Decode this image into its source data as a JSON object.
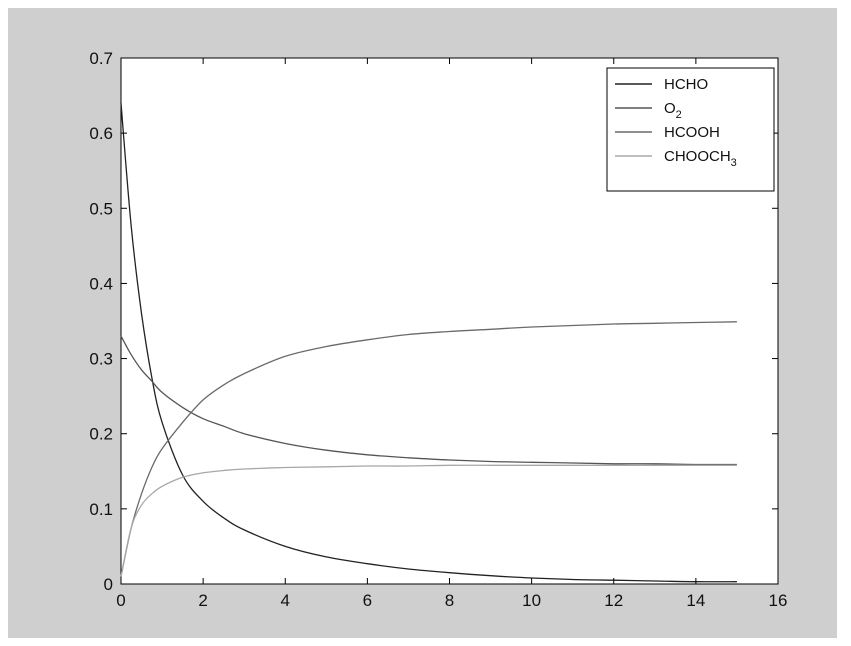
{
  "chart_data": {
    "type": "line",
    "title": "",
    "xlabel": "",
    "ylabel": "",
    "xlim": [
      0,
      16
    ],
    "ylim": [
      0,
      0.7
    ],
    "xticks": [
      0,
      2,
      4,
      6,
      8,
      10,
      12,
      14,
      16
    ],
    "yticks": [
      0,
      0.1,
      0.2,
      0.3,
      0.4,
      0.5,
      0.6,
      0.7
    ],
    "xtick_labels": [
      "0",
      "2",
      "4",
      "6",
      "8",
      "10",
      "12",
      "14",
      "16"
    ],
    "ytick_labels": [
      "0",
      "0.1",
      "0.2",
      "0.3",
      "0.4",
      "0.5",
      "0.6",
      "0.7"
    ],
    "grid": false,
    "legend_position": "top-right",
    "series": [
      {
        "name": "HCHO",
        "label_main": "HCHO",
        "label_sub": "",
        "color": "#222222",
        "x": [
          0,
          0.25,
          0.5,
          0.75,
          1,
          1.5,
          2,
          2.5,
          3,
          4,
          5,
          6,
          7,
          8,
          9,
          10,
          11,
          12,
          13,
          14,
          15
        ],
        "y": [
          0.64,
          0.475,
          0.36,
          0.275,
          0.215,
          0.145,
          0.11,
          0.088,
          0.072,
          0.05,
          0.036,
          0.027,
          0.02,
          0.015,
          0.011,
          0.008,
          0.006,
          0.005,
          0.004,
          0.003,
          0.003
        ]
      },
      {
        "name": "O2",
        "label_main": "O",
        "label_sub": "2",
        "color": "#555555",
        "x": [
          0,
          0.25,
          0.5,
          0.75,
          1,
          1.5,
          2,
          2.5,
          3,
          4,
          5,
          6,
          7,
          8,
          9,
          10,
          11,
          12,
          13,
          14,
          15
        ],
        "y": [
          0.33,
          0.305,
          0.285,
          0.27,
          0.255,
          0.235,
          0.22,
          0.21,
          0.2,
          0.187,
          0.178,
          0.172,
          0.168,
          0.165,
          0.163,
          0.162,
          0.161,
          0.16,
          0.16,
          0.159,
          0.159
        ]
      },
      {
        "name": "HCOOH",
        "label_main": "HCOOH",
        "label_sub": "",
        "color": "#6a6a6a",
        "x": [
          0,
          0.25,
          0.5,
          0.75,
          1,
          1.5,
          2,
          2.5,
          3,
          4,
          5,
          6,
          7,
          8,
          9,
          10,
          11,
          12,
          13,
          14,
          15
        ],
        "y": [
          0.01,
          0.075,
          0.12,
          0.155,
          0.18,
          0.215,
          0.245,
          0.265,
          0.28,
          0.303,
          0.316,
          0.325,
          0.332,
          0.336,
          0.339,
          0.342,
          0.344,
          0.346,
          0.347,
          0.348,
          0.349
        ]
      },
      {
        "name": "CHOOCH3",
        "label_main": "CHOOCH",
        "label_sub": "3",
        "color": "#a8a8a8",
        "x": [
          0,
          0.25,
          0.5,
          0.75,
          1,
          1.5,
          2,
          2.5,
          3,
          4,
          5,
          6,
          7,
          8,
          9,
          10,
          11,
          12,
          13,
          14,
          15
        ],
        "y": [
          0.01,
          0.075,
          0.105,
          0.12,
          0.13,
          0.142,
          0.148,
          0.151,
          0.153,
          0.155,
          0.156,
          0.157,
          0.157,
          0.158,
          0.158,
          0.158,
          0.158,
          0.158,
          0.158,
          0.158,
          0.158
        ]
      }
    ]
  }
}
